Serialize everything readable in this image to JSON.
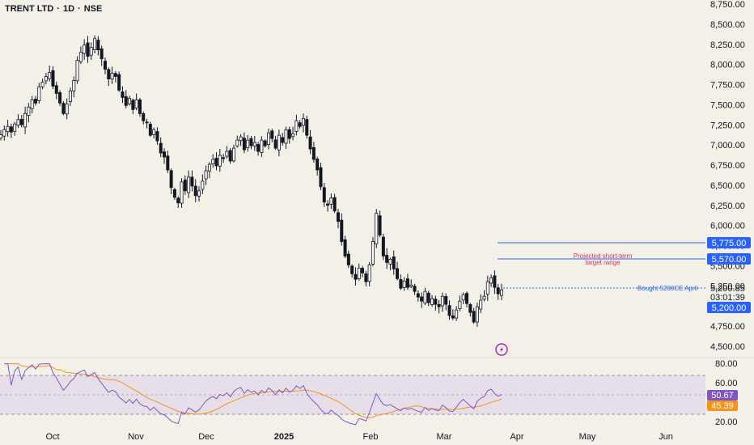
{
  "header": {
    "symbol": "TRENT LTD",
    "sep1": "·",
    "interval": "1D",
    "sep2": "·",
    "exchange": "NSE"
  },
  "price_axis": {
    "ticks": [
      "8,750.00",
      "8,500.00",
      "8,250.00",
      "8,000.00",
      "7,750.00",
      "7,500.00",
      "7,250.00",
      "7,000.00",
      "6,750.00",
      "6,500.00",
      "6,250.00",
      "6,000.00",
      "5,750.00",
      "5,500.00",
      "5,250.00",
      "4,750.00",
      "4,500.00"
    ],
    "tick_values": [
      8750,
      8500,
      8250,
      8000,
      7750,
      7500,
      7250,
      7000,
      6750,
      6500,
      6250,
      6000,
      5750,
      5500,
      5250,
      4750,
      4500
    ]
  },
  "rsi_axis": {
    "ticks": [
      "80.00",
      "60.00",
      "20.00"
    ],
    "tick_values": [
      80,
      60,
      20
    ]
  },
  "time_axis": {
    "labels": [
      "Oct",
      "Nov",
      "Dec",
      "2025",
      "Feb",
      "Mar",
      "Apr",
      "May",
      "Jun"
    ]
  },
  "levels": {
    "target_high": {
      "value": 5775,
      "label": "5,775.00",
      "color": "#2962ff"
    },
    "target_low": {
      "value": 5570,
      "label": "5,570.00",
      "color": "#2962ff"
    },
    "current_price": {
      "value": 5200.85,
      "label": "5,200.85",
      "countdown": "03:01:39"
    },
    "bought_level": {
      "value": 5200,
      "label": "5,200.00",
      "color": "#2962ff"
    }
  },
  "annotations": {
    "projected_line1": "Projected  short-term",
    "projected_line2": "target range",
    "bought_text": "Bought 5200CE April"
  },
  "rsi_values": {
    "rsi": "50.67",
    "rsi_ma": "45.39",
    "rsi_color": "#7e57c2",
    "ma_color": "#f7931a"
  },
  "colors": {
    "background": "#f3f0e8",
    "candle_up": "#ffffff",
    "candle_down": "#131722",
    "band_fill": "#e6dfea"
  },
  "chart_data": {
    "type": "candlestick",
    "closes": [
      7125,
      7190,
      7230,
      7160,
      7260,
      7315,
      7250,
      7390,
      7470,
      7560,
      7520,
      7720,
      7780,
      7850,
      7900,
      7730,
      7640,
      7520,
      7390,
      7510,
      7670,
      7800,
      8050,
      8150,
      8240,
      8100,
      8210,
      8320,
      8180,
      8070,
      7940,
      7820,
      7890,
      7850,
      7680,
      7590,
      7490,
      7580,
      7440,
      7560,
      7390,
      7300,
      7280,
      7120,
      7190,
      7050,
      6900,
      6850,
      6690,
      6470,
      6350,
      6280,
      6540,
      6430,
      6600,
      6490,
      6370,
      6430,
      6550,
      6680,
      6760,
      6820,
      6740,
      6870,
      6830,
      6920,
      6800,
      6960,
      7060,
      7100,
      6940,
      7060,
      6990,
      7030,
      6920,
      7060,
      6990,
      7150,
      7080,
      6960,
      7120,
      7030,
      7190,
      7080,
      7140,
      7300,
      7230,
      7330,
      7120,
      6950,
      6820,
      6690,
      6480,
      6290,
      6250,
      6340,
      6180,
      6050,
      5800,
      5620,
      5510,
      5400,
      5330,
      5470,
      5410,
      5300,
      5510,
      5800,
      6150,
      5880,
      5620,
      5540,
      5580,
      5460,
      5340,
      5220,
      5310,
      5230,
      5260,
      5180,
      5110,
      5060,
      5180,
      5040,
      5090,
      5020,
      4990,
      5120,
      5020,
      4880,
      4850,
      4950,
      5060,
      5140,
      5030,
      4920,
      4800,
      4990,
      5070,
      5120,
      5300,
      5350,
      5230,
      5150,
      5200
    ],
    "x_range": [
      "Sep 2024",
      "Jun 2025"
    ],
    "y_range": [
      4400,
      8800
    ],
    "levels": [
      5775,
      5570,
      5200
    ],
    "rsi": {
      "ylim": [
        20,
        80
      ],
      "band": [
        30,
        70
      ],
      "mid": 50,
      "last_rsi": 50.67,
      "last_ma": 45.39
    }
  }
}
